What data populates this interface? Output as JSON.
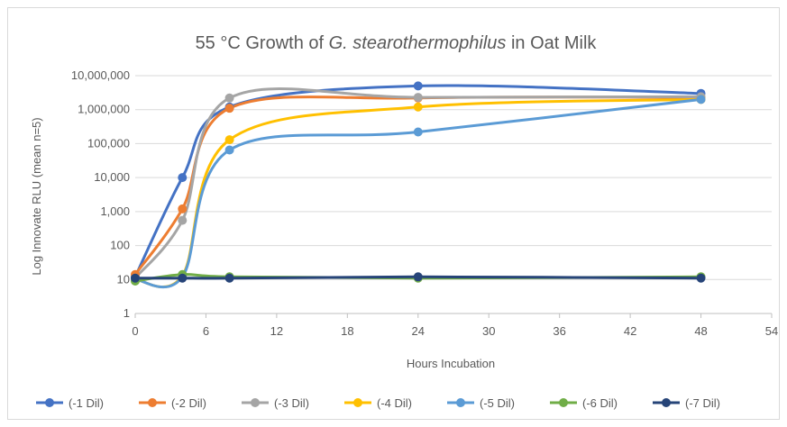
{
  "chart_data": {
    "type": "line",
    "title_prefix": "55 °C Growth of ",
    "title_italic": "G. stearothermophilus",
    "title_suffix": " in Oat Milk",
    "xlabel": "Hours Incubation",
    "ylabel": "Log Innovate RLU (mean n=5)",
    "xlim": [
      0,
      54
    ],
    "x_ticks": [
      0,
      6,
      12,
      18,
      24,
      30,
      36,
      42,
      48,
      54
    ],
    "ylim": [
      1,
      10000000
    ],
    "y_scale": "log",
    "y_ticks": [
      {
        "value": 1,
        "label": "1"
      },
      {
        "value": 10,
        "label": "10"
      },
      {
        "value": 100,
        "label": "100"
      },
      {
        "value": 1000,
        "label": "1,000"
      },
      {
        "value": 10000,
        "label": "10,000"
      },
      {
        "value": 100000,
        "label": "100,000"
      },
      {
        "value": 1000000,
        "label": "1,000,000"
      },
      {
        "value": 10000000,
        "label": "10,000,000"
      }
    ],
    "grid": true,
    "smooth": true,
    "legend_position": "bottom",
    "x": [
      0,
      4,
      8,
      24,
      48
    ],
    "series": [
      {
        "name": "(-1 Dil)",
        "color": "#4472c4",
        "values": [
          12,
          10000,
          1200000,
          5000000,
          3000000
        ]
      },
      {
        "name": "(-2 Dil)",
        "color": "#ed7d31",
        "values": [
          14,
          1200,
          1100000,
          2200000,
          2300000
        ]
      },
      {
        "name": "(-3 Dil)",
        "color": "#a5a5a5",
        "values": [
          11,
          550,
          2200000,
          2300000,
          2400000
        ]
      },
      {
        "name": "(-4 Dil)",
        "color": "#ffc000",
        "values": [
          10,
          13,
          130000,
          1200000,
          2000000
        ]
      },
      {
        "name": "(-5 Dil)",
        "color": "#5b9bd5",
        "values": [
          10,
          12,
          65000,
          220000,
          2000000
        ]
      },
      {
        "name": "(-6 Dil)",
        "color": "#70ad47",
        "values": [
          9,
          14,
          12,
          11,
          12
        ]
      },
      {
        "name": "(-7 Dil)",
        "color": "#264478",
        "values": [
          11,
          11,
          11,
          12,
          11
        ]
      }
    ]
  }
}
